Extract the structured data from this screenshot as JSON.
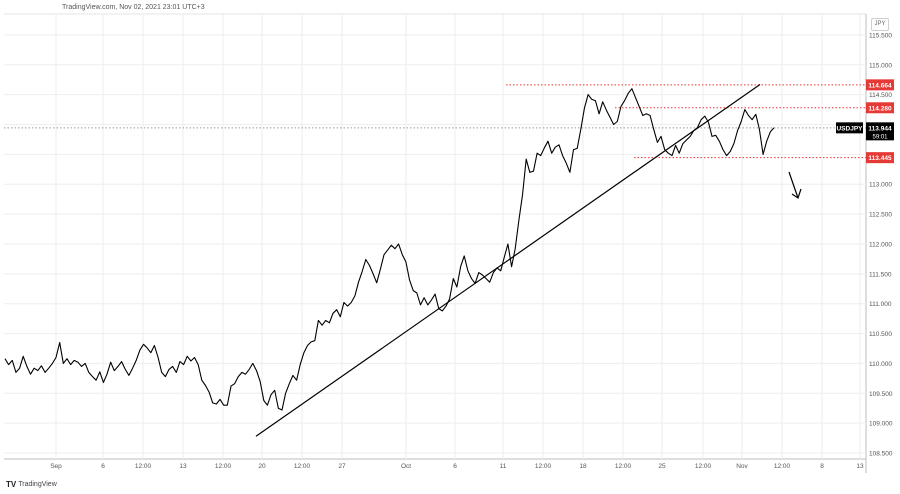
{
  "header": "TradingView.com, Nov 02, 2021 23:01 UTC+3",
  "currency_badge": "JPY",
  "brand": {
    "mark": "TV",
    "name": "TradingView"
  },
  "colors": {
    "line": "#000000",
    "level": "#e53935",
    "grid": "#eeeeee",
    "axis_text": "#555555",
    "dotted": "#999999",
    "symbol_badge": "#000000"
  },
  "chart_data": {
    "type": "line",
    "symbol": "USDJPY",
    "last_price": "113.944",
    "countdown": "59:01",
    "ylim": [
      108.4,
      115.85
    ],
    "y_ticks": [
      "108.500",
      "109.000",
      "109.500",
      "110.000",
      "110.500",
      "111.000",
      "111.500",
      "112.000",
      "112.500",
      "113.000",
      "113.500",
      "114.000",
      "114.500",
      "115.000",
      "115.500"
    ],
    "x_labels": [
      "Sep",
      "6",
      "12:00",
      "13",
      "12:00",
      "20",
      "12:00",
      "27",
      "Oct",
      "6",
      "11",
      "12:00",
      "18",
      "12:00",
      "25",
      "12:00",
      "Nov",
      "12:00",
      "8",
      "13"
    ],
    "levels": [
      {
        "label": "114.664",
        "value": 114.664
      },
      {
        "label": "114.280",
        "value": 114.28
      },
      {
        "label": "113.445",
        "value": 113.445
      }
    ],
    "trendline": {
      "start": [
        0.0,
        108.78
      ],
      "end": [
        1.0,
        114.67
      ]
    },
    "series": [
      {
        "values": [
          110.08,
          109.98,
          110.05,
          109.85,
          109.92,
          110.12,
          109.95,
          109.82,
          109.92,
          109.88,
          109.96,
          109.85,
          109.92,
          110.0,
          110.1,
          110.35,
          110.0,
          110.08,
          109.98,
          110.05,
          110.02,
          109.95,
          110.0,
          109.85,
          109.78,
          109.72,
          109.86,
          109.68,
          109.82,
          110.02,
          109.88,
          109.95,
          110.03,
          109.9,
          109.8,
          109.92,
          110.05,
          110.22,
          110.32,
          110.26,
          110.18,
          110.3,
          110.1,
          109.85,
          109.78,
          109.9,
          109.95,
          109.85,
          110.03,
          109.98,
          110.12,
          110.04,
          110.1,
          109.98,
          109.72,
          109.63,
          109.52,
          109.34,
          109.32,
          109.4,
          109.3,
          109.3,
          109.62,
          109.66,
          109.78,
          109.85,
          109.82,
          109.9,
          110.0,
          109.88,
          109.7,
          109.38,
          109.3,
          109.48,
          109.55,
          109.25,
          109.22,
          109.5,
          109.66,
          109.8,
          109.72,
          109.98,
          110.18,
          110.3,
          110.36,
          110.38,
          110.72,
          110.64,
          110.72,
          110.68,
          110.84,
          110.9,
          110.78,
          111.02,
          110.96,
          111.02,
          111.13,
          111.36,
          111.54,
          111.74,
          111.64,
          111.5,
          111.35,
          111.58,
          111.82,
          111.9,
          111.98,
          111.92,
          112.0,
          111.82,
          111.7,
          111.4,
          111.22,
          111.18,
          110.98,
          111.1,
          110.98,
          111.06,
          111.16,
          110.92,
          110.88,
          110.96,
          111.08,
          111.42,
          111.28,
          111.62,
          111.8,
          111.55,
          111.42,
          111.34,
          111.52,
          111.48,
          111.42,
          111.36,
          111.52,
          111.6,
          111.55,
          111.78,
          112.0,
          111.62,
          111.92,
          112.4,
          112.82,
          113.42,
          113.2,
          113.22,
          113.52,
          113.48,
          113.61,
          113.72,
          113.52,
          113.62,
          113.66,
          113.48,
          113.35,
          113.2,
          113.58,
          113.6,
          113.92,
          114.28,
          114.5,
          114.42,
          114.4,
          114.18,
          114.38,
          114.24,
          114.12,
          114.0,
          114.05,
          114.3,
          114.4,
          114.52,
          114.6,
          114.45,
          114.3,
          114.15,
          114.18,
          114.15,
          113.92,
          113.7,
          113.8,
          113.58,
          113.52,
          113.48,
          113.65,
          113.52,
          113.68,
          113.74,
          113.8,
          113.9,
          113.95,
          114.08,
          114.14,
          114.04,
          113.8,
          113.82,
          113.72,
          113.58,
          113.48,
          113.55,
          113.68,
          113.9,
          114.05,
          114.25,
          114.15,
          114.08,
          114.17,
          113.92,
          113.5,
          113.72,
          113.88,
          113.944
        ]
      }
    ]
  }
}
